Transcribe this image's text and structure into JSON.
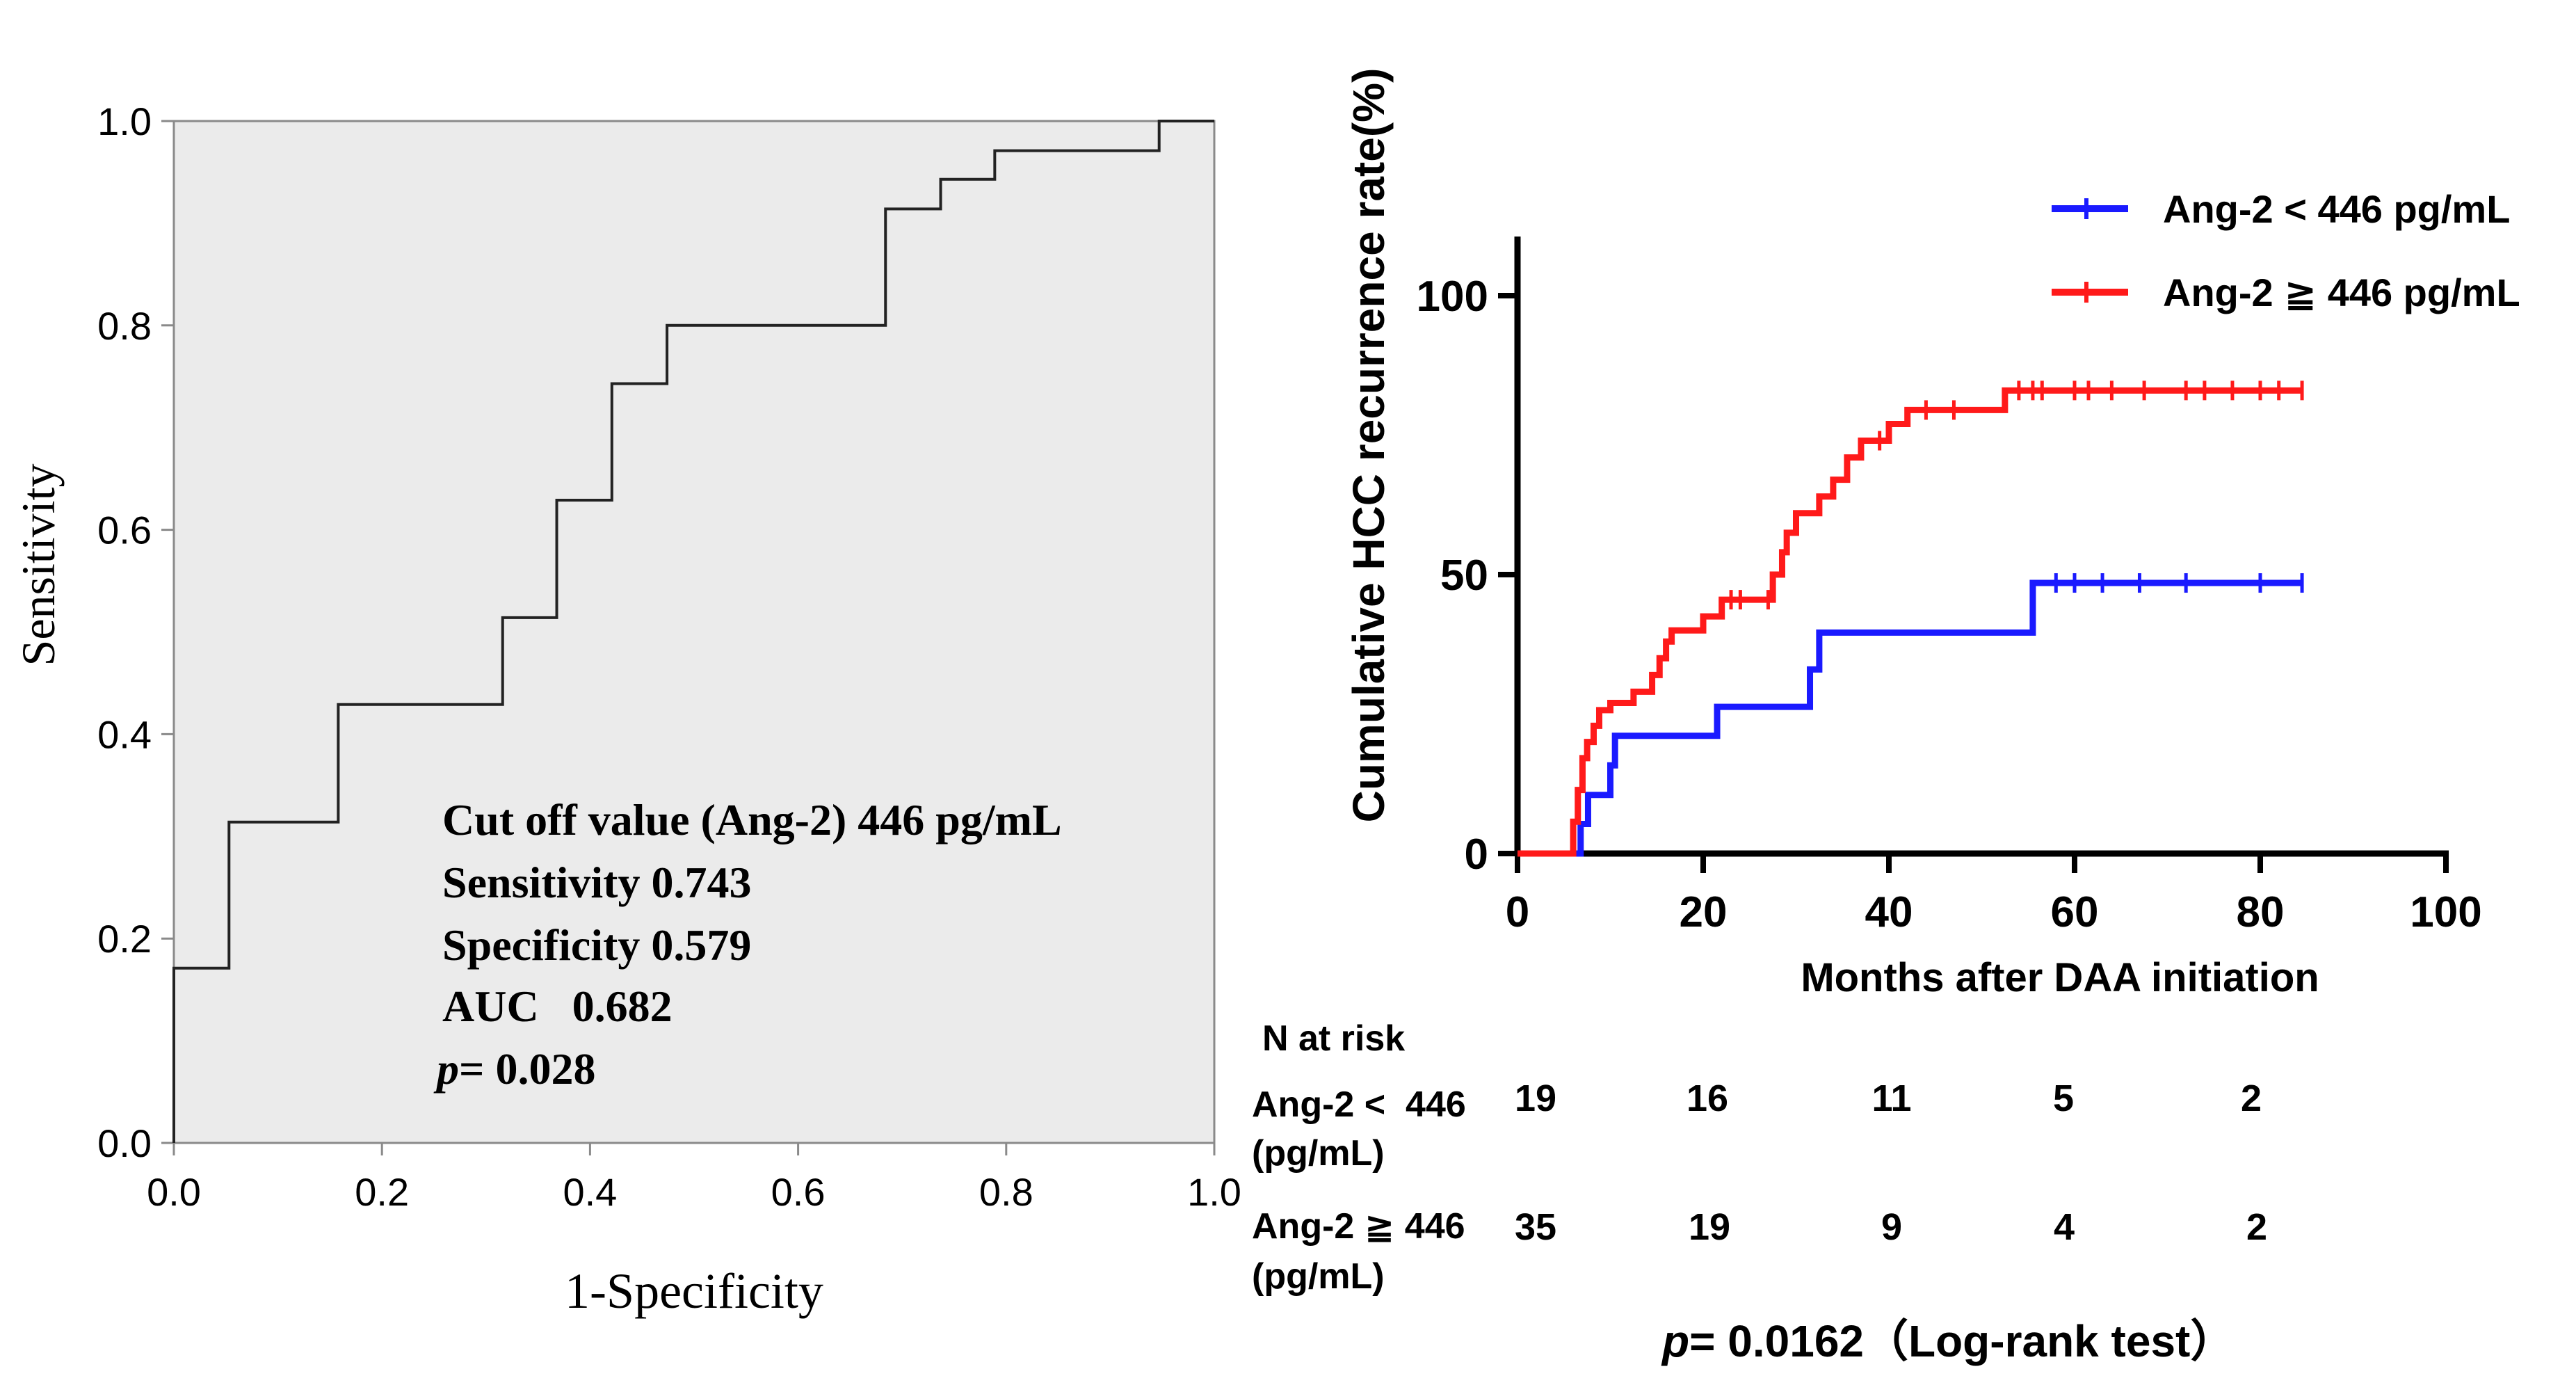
{
  "chart_data": [
    {
      "type": "line",
      "subtype": "roc-step",
      "xlabel": "1-Specificity",
      "ylabel": "Sensitivity",
      "xlim": [
        0,
        1
      ],
      "ylim": [
        0,
        1
      ],
      "x_ticks": [
        "0.0",
        "0.2",
        "0.4",
        "0.6",
        "0.8",
        "1.0"
      ],
      "y_ticks": [
        "0.0",
        "0.2",
        "0.4",
        "0.6",
        "0.8",
        "1.0"
      ],
      "grid": false,
      "plot_background": "#ebebeb",
      "line_color": "#222222",
      "series": [
        {
          "points": [
            [
              0,
              0
            ],
            [
              0,
              0.171
            ],
            [
              0.053,
              0.171
            ],
            [
              0.053,
              0.314
            ],
            [
              0.158,
              0.314
            ],
            [
              0.158,
              0.429
            ],
            [
              0.316,
              0.429
            ],
            [
              0.316,
              0.514
            ],
            [
              0.368,
              0.514
            ],
            [
              0.368,
              0.629
            ],
            [
              0.421,
              0.629
            ],
            [
              0.421,
              0.743
            ],
            [
              0.474,
              0.743
            ],
            [
              0.474,
              0.8
            ],
            [
              0.684,
              0.8
            ],
            [
              0.684,
              0.914
            ],
            [
              0.737,
              0.914
            ],
            [
              0.737,
              0.943
            ],
            [
              0.789,
              0.943
            ],
            [
              0.789,
              0.971
            ],
            [
              0.947,
              0.971
            ],
            [
              0.947,
              1.0
            ],
            [
              1.0,
              1.0
            ]
          ]
        }
      ],
      "annotation": {
        "line1": "Cut off value (Ang-2) 446 pg/mL",
        "line2": "Sensitivity 0.743",
        "line3": "Specificity 0.579",
        "line4": "AUC   0.682",
        "line5_italic": "p",
        "line5_rest": "= 0.028"
      }
    },
    {
      "type": "line",
      "subtype": "kaplan-meier-step",
      "xlabel": "Months after DAA initiation",
      "ylabel": "Cumulative HCC recurrence rate(%)",
      "xlim": [
        0,
        100
      ],
      "ylim": [
        0,
        100
      ],
      "x_ticks": [
        "0",
        "20",
        "40",
        "60",
        "80",
        "100"
      ],
      "y_ticks": [
        "0",
        "50",
        "100"
      ],
      "grid": false,
      "legend_position": "top-right",
      "series": [
        {
          "name": "Ang-2 < 446 pg/mL",
          "color": "#1a1aff",
          "points": [
            [
              0,
              0
            ],
            [
              6.8,
              0
            ],
            [
              6.8,
              5.3
            ],
            [
              7.6,
              5.3
            ],
            [
              7.6,
              10.5
            ],
            [
              10,
              10.5
            ],
            [
              10,
              15.8
            ],
            [
              10.5,
              15.8
            ],
            [
              10.5,
              21.1
            ],
            [
              21.5,
              21.1
            ],
            [
              21.5,
              26.3
            ],
            [
              31.5,
              26.3
            ],
            [
              31.5,
              33
            ],
            [
              32.5,
              33
            ],
            [
              32.5,
              39.6
            ],
            [
              55.5,
              39.6
            ],
            [
              55.5,
              48.5
            ],
            [
              84.5,
              48.5
            ]
          ],
          "censor_x": [
            58,
            60,
            63,
            67,
            72,
            80,
            84.5
          ]
        },
        {
          "name": "Ang-2 ≧ 446 pg/mL",
          "color": "#ff1a1a",
          "points": [
            [
              0,
              0
            ],
            [
              6.0,
              0
            ],
            [
              6.0,
              5.7
            ],
            [
              6.5,
              5.7
            ],
            [
              6.5,
              11.4
            ],
            [
              7.0,
              11.4
            ],
            [
              7.0,
              17.1
            ],
            [
              7.5,
              17.1
            ],
            [
              7.5,
              20
            ],
            [
              8.2,
              20
            ],
            [
              8.2,
              22.9
            ],
            [
              8.8,
              22.9
            ],
            [
              8.8,
              25.7
            ],
            [
              10,
              25.7
            ],
            [
              10,
              27
            ],
            [
              12.5,
              27
            ],
            [
              12.5,
              29
            ],
            [
              14.5,
              29
            ],
            [
              14.5,
              32
            ],
            [
              15.3,
              32
            ],
            [
              15.3,
              35
            ],
            [
              16,
              35
            ],
            [
              16,
              38
            ],
            [
              16.6,
              38
            ],
            [
              16.6,
              40
            ],
            [
              20,
              40
            ],
            [
              20,
              42.5
            ],
            [
              22,
              42.5
            ],
            [
              22,
              45.5
            ],
            [
              27.5,
              45.5
            ],
            [
              27.5,
              50
            ],
            [
              28.5,
              50
            ],
            [
              28.5,
              54
            ],
            [
              29,
              54
            ],
            [
              29,
              57.5
            ],
            [
              30,
              57.5
            ],
            [
              30,
              61
            ],
            [
              32.5,
              61
            ],
            [
              32.5,
              64
            ],
            [
              34,
              64
            ],
            [
              34,
              67
            ],
            [
              35.5,
              67
            ],
            [
              35.5,
              71
            ],
            [
              37,
              71
            ],
            [
              37,
              74
            ],
            [
              40,
              74
            ],
            [
              40,
              77
            ],
            [
              42,
              77
            ],
            [
              42,
              79.5
            ],
            [
              52.5,
              79.5
            ],
            [
              52.5,
              83
            ],
            [
              84.5,
              83
            ]
          ],
          "censor_x": [
            23,
            24,
            27,
            39,
            44,
            47,
            54,
            55.5,
            56.5,
            60,
            61.5,
            64,
            67.5,
            72,
            74,
            77,
            80,
            82,
            84.5
          ]
        }
      ],
      "risk_table": {
        "title": "N at risk",
        "rows": [
          {
            "label_line1": "Ang-2 <  446",
            "label_line2": "(pg/mL)",
            "values": [
              "19",
              "16",
              "11",
              "5",
              "2"
            ]
          },
          {
            "label_line1": "Ang-2 ≧ 446",
            "label_line2": "(pg/mL)",
            "values": [
              "35",
              "19",
              "9",
              "4",
              "2"
            ]
          }
        ]
      },
      "footnote": {
        "italic": "p",
        "rest": "= 0.0162（Log-rank test）"
      }
    }
  ]
}
